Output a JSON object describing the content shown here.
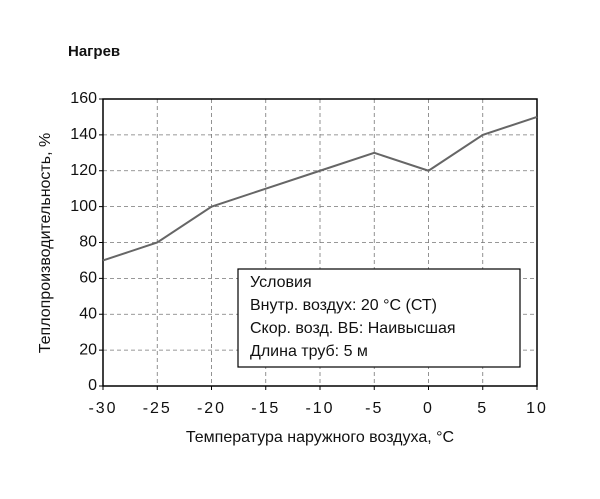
{
  "chart_data": {
    "type": "line",
    "title": "Нагрев",
    "xlabel": "Температура наружного воздуха, °С",
    "ylabel": "Теплопроизводительность, %",
    "x": [
      -30,
      -25,
      -20,
      -15,
      -10,
      -5,
      0,
      5,
      10
    ],
    "series": [
      {
        "color": "#666666",
        "values": [
          70,
          80,
          100,
          110,
          120,
          130,
          120,
          140,
          150
        ]
      }
    ],
    "xlim": [
      -30,
      10
    ],
    "xticks": [
      -30,
      -25,
      -20,
      -15,
      -10,
      -5,
      0,
      5,
      10
    ],
    "ylim": [
      0,
      160
    ],
    "yticks": [
      0,
      20,
      40,
      60,
      80,
      100,
      120,
      140,
      160
    ],
    "grid": true,
    "annotation": [
      "Условия",
      "Внутр. воздух: 20 °С (СТ)",
      "Скор. возд. ВБ: Наивысшая",
      "Длина труб: 5 м"
    ]
  }
}
